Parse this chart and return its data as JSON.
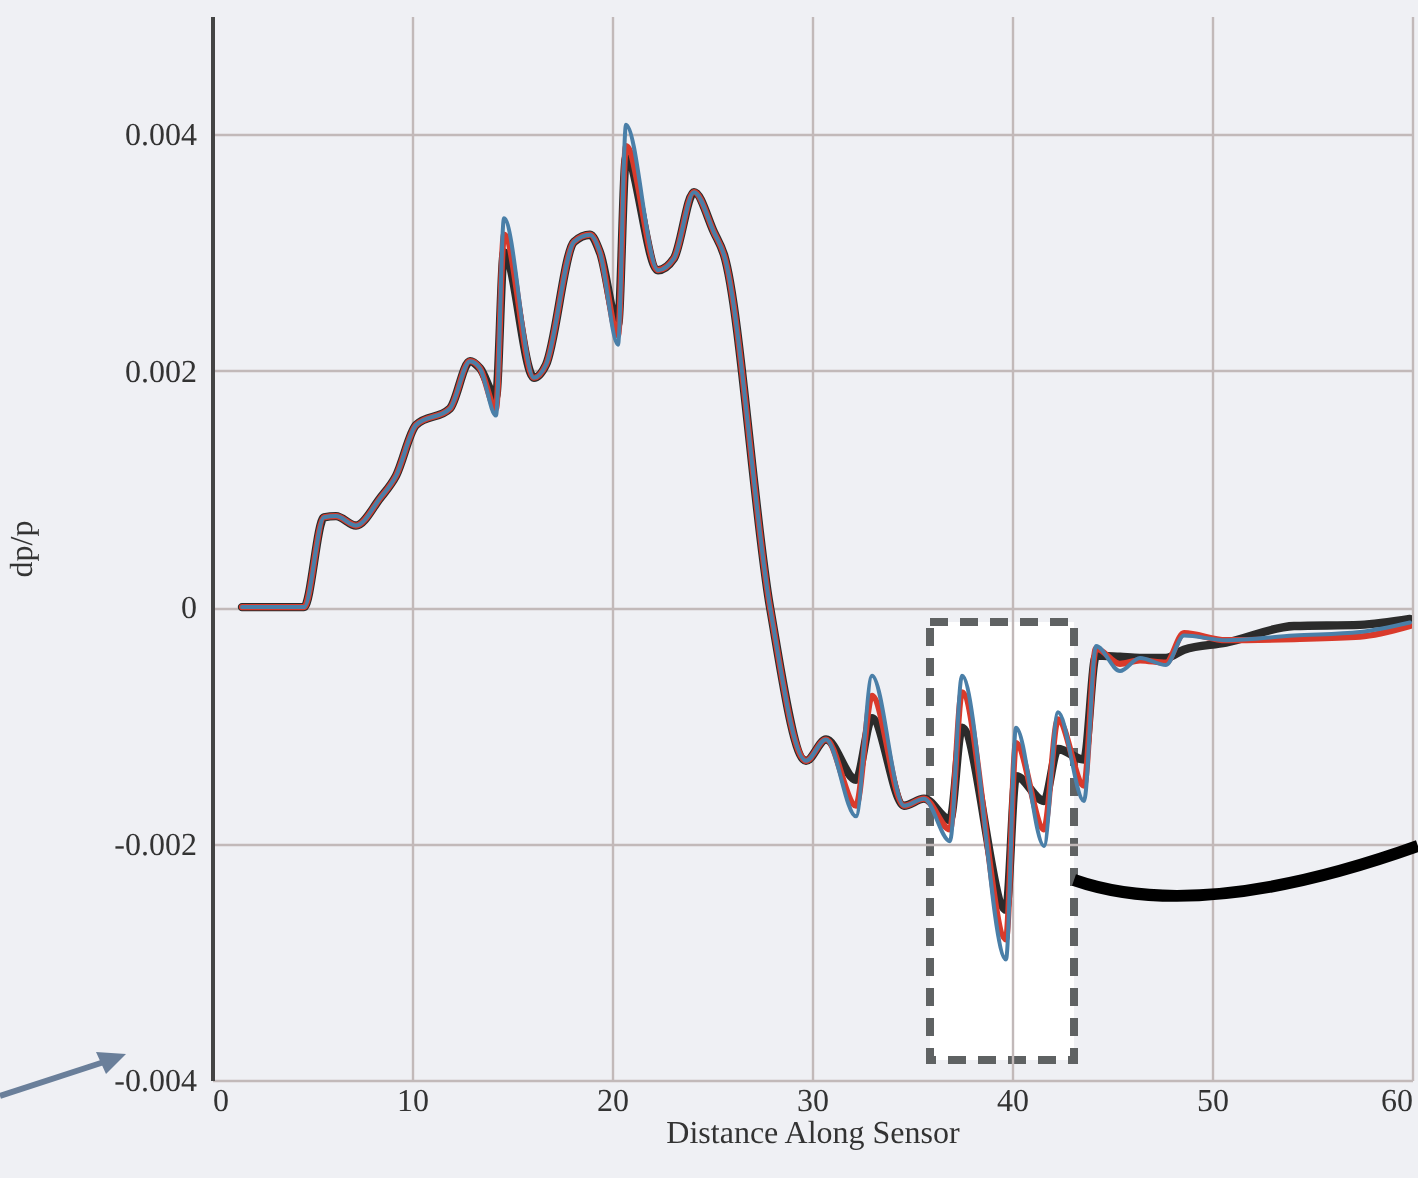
{
  "chart_data": {
    "type": "line",
    "xlabel": "Distance Along Sensor",
    "ylabel": "dp/p",
    "x": [
      1.5,
      4.6,
      5.6,
      6.2,
      7.2,
      8.4,
      9.2,
      10.2,
      11.9,
      12.9,
      13.4,
      14.2,
      14.6,
      16.1,
      16.7,
      18.1,
      18.9,
      19.4,
      20.3,
      20.7,
      22.3,
      23.1,
      24.1,
      25.1,
      25.6,
      27.9,
      29.7,
      30.7,
      32.2,
      33.0,
      34.6,
      35.6,
      36.9,
      37.5,
      39.7,
      40.2,
      41.6,
      42.3,
      43.6,
      44.2,
      45.4,
      46.4,
      47.7,
      48.6,
      50.7,
      54.1,
      57.4,
      59.9
    ],
    "series": [
      {
        "color": "#2b2b2b",
        "values": [
          0,
          0,
          0.00076,
          0.00077,
          0.00069,
          0.00092,
          0.00111,
          0.00154,
          0.00168,
          0.00208,
          0.00202,
          0.00178,
          0.003,
          0.00194,
          0.00205,
          0.00309,
          0.00315,
          0.003,
          0.00239,
          0.0038,
          0.00285,
          0.00295,
          0.00351,
          0.00317,
          0.00298,
          0.0,
          -0.0013,
          -0.00112,
          -0.00146,
          -0.00094,
          -0.00168,
          -0.00162,
          -0.0018,
          -0.00102,
          -0.00256,
          -0.00143,
          -0.00164,
          -0.0012,
          -0.00129,
          -0.00041,
          -0.00042,
          -0.00043,
          -0.00043,
          -0.00036,
          -0.0003,
          -0.00016,
          -0.00015,
          -0.0001
        ]
      },
      {
        "color": "#d93a2b",
        "values": [
          0,
          0,
          0.00076,
          0.00077,
          0.00069,
          0.00092,
          0.00111,
          0.00154,
          0.00168,
          0.00208,
          0.00202,
          0.00168,
          0.00315,
          0.00194,
          0.00205,
          0.00309,
          0.00315,
          0.003,
          0.0023,
          0.0039,
          0.00285,
          0.00295,
          0.00351,
          0.00317,
          0.00298,
          0.0,
          -0.0013,
          -0.00112,
          -0.00168,
          -0.00075,
          -0.00168,
          -0.00162,
          -0.00188,
          -0.00072,
          -0.00281,
          -0.00115,
          -0.00188,
          -0.00095,
          -0.00151,
          -0.00035,
          -0.00048,
          -0.00045,
          -0.00047,
          -0.00022,
          -0.00028,
          -0.00027,
          -0.00025,
          -0.00016
        ]
      },
      {
        "color": "#4a7fa8",
        "values": [
          0,
          0,
          0.00076,
          0.00077,
          0.00069,
          0.00092,
          0.00111,
          0.00154,
          0.00168,
          0.00208,
          0.00202,
          0.00162,
          0.00329,
          0.00194,
          0.00205,
          0.00309,
          0.00315,
          0.003,
          0.00222,
          0.00408,
          0.00285,
          0.00295,
          0.00351,
          0.00317,
          0.00298,
          0.0,
          -0.0013,
          -0.00112,
          -0.00177,
          -0.00058,
          -0.00168,
          -0.00162,
          -0.00198,
          -0.00058,
          -0.00298,
          -0.00102,
          -0.00202,
          -0.00089,
          -0.00164,
          -0.00033,
          -0.00054,
          -0.00043,
          -0.00049,
          -0.00024,
          -0.00028,
          -0.00024,
          -0.00021,
          -0.00013
        ]
      }
    ],
    "xlim": [
      0,
      60
    ],
    "xticks": [
      0,
      10,
      20,
      30,
      40,
      50,
      60
    ],
    "ylim": [
      -0.004,
      0.005
    ],
    "yticks": [
      -0.004,
      -0.002,
      0,
      0.002,
      0.004
    ],
    "grid": true
  }
}
